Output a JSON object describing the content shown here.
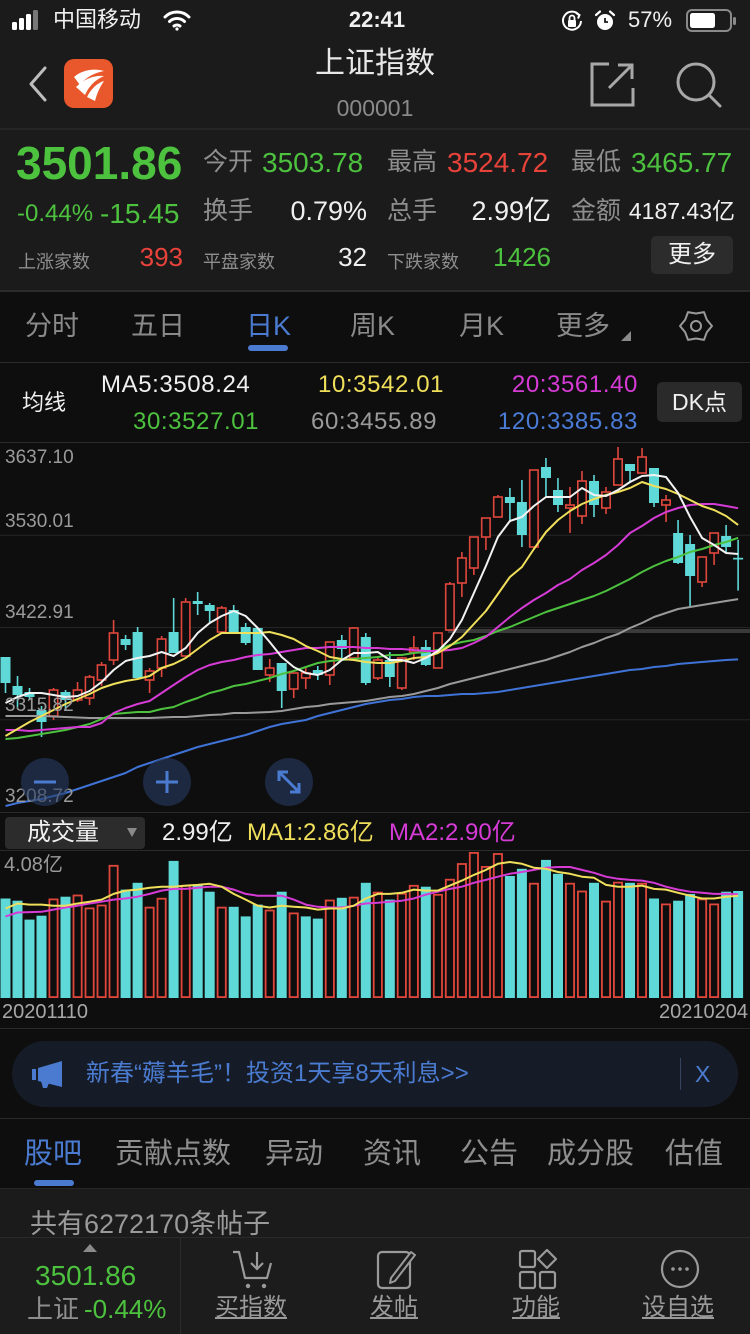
{
  "status_bar": {
    "carrier": "中国移动",
    "time": "22:41",
    "battery": "57%"
  },
  "header": {
    "title": "上证指数",
    "code": "000001"
  },
  "quote": {
    "price": "3501.86",
    "change_pct": "-0.44%",
    "change": "-15.45",
    "open_label": "今开",
    "open": "3503.78",
    "high_label": "最高",
    "high": "3524.72",
    "low_label": "最低",
    "low": "3465.77",
    "turnover_label": "换手",
    "turnover": "0.79%",
    "volume_label": "总手",
    "volume": "2.99亿",
    "amount_label": "金额",
    "amount": "4187.43亿",
    "up_label": "上涨家数",
    "up": "393",
    "flat_label": "平盘家数",
    "flat": "32",
    "down_label": "下跌家数",
    "down": "1426",
    "more_button": "更多"
  },
  "period_tabs": [
    {
      "label": "分时"
    },
    {
      "label": "五日"
    },
    {
      "label": "日K",
      "active": true
    },
    {
      "label": "周K"
    },
    {
      "label": "月K"
    },
    {
      "label": "更多"
    }
  ],
  "ma_legend": {
    "label": "均线",
    "ma5": "MA5:3508.24",
    "ma10": "10:3542.01",
    "ma20": "20:3561.40",
    "ma30": "30:3527.01",
    "ma60": "60:3455.89",
    "ma120": "120:3385.83",
    "dk_button": "DK点"
  },
  "kline": {
    "y_ticks": [
      "3637.10",
      "3530.01",
      "3422.91",
      "3315.82",
      "3208.72"
    ]
  },
  "volume_panel": {
    "selector": "成交量",
    "value": "2.99亿",
    "ma1": "MA1:2.86亿",
    "ma2": "MA2:2.90亿",
    "max_label": "4.08亿",
    "start_date": "20201110",
    "end_date": "20210204"
  },
  "banner": {
    "text": "新春“薅羊毛”！投资1天享8天利息>>",
    "close": "X"
  },
  "content_tabs": [
    {
      "label": "股吧",
      "active": true
    },
    {
      "label": "贡献点数"
    },
    {
      "label": "异动"
    },
    {
      "label": "资讯"
    },
    {
      "label": "公告"
    },
    {
      "label": "成分股"
    },
    {
      "label": "估值"
    }
  ],
  "post_count": "共有6272170条帖子",
  "bottom_bar": {
    "price": "3501.86",
    "name": "上证",
    "change_pct": "-0.44%",
    "actions": [
      {
        "label": "买指数",
        "icon": "cart-download-icon"
      },
      {
        "label": "发帖",
        "icon": "edit-icon"
      },
      {
        "label": "功能",
        "icon": "apps-grid-icon"
      },
      {
        "label": "设自选",
        "icon": "more-circle-icon"
      }
    ]
  },
  "colors": {
    "up": "#e0473c",
    "down": "#5fd8d8",
    "green_text": "#4dc23f",
    "red_text": "#e8433a",
    "accent": "#4a7bd0",
    "ma5": "#f2f2f2",
    "ma10": "#f0df5b",
    "ma20": "#d63bd6",
    "ma30": "#4dc23f",
    "ma60": "#9a9a9a",
    "ma120": "#3f73d6",
    "vol_ma1": "#f0df5b",
    "vol_ma2": "#d63bd6"
  },
  "chart_data": {
    "type": "candlestick",
    "title": "上证指数 日K",
    "x_start": "20201110",
    "x_end": "20210204",
    "ylim": [
      3208.72,
      3637.1
    ],
    "y_ticks": [
      3637.1,
      3530.01,
      3422.91,
      3315.82,
      3208.72
    ],
    "grid": true,
    "candle_format": [
      "open",
      "high",
      "low",
      "close"
    ],
    "candles": [
      [
        3388.67,
        3388.67,
        3346.88,
        3358.49
      ],
      [
        3355.0,
        3366.61,
        3330.62,
        3344.55
      ],
      [
        3348.04,
        3352.69,
        3338.75,
        3342.23
      ],
      [
        3327.14,
        3331.78,
        3295.8,
        3313.21
      ],
      [
        3320.18,
        3352.69,
        3315.53,
        3350.36
      ],
      [
        3348.04,
        3350.36,
        3327.14,
        3338.75
      ],
      [
        3338.75,
        3359.65,
        3336.43,
        3350.36
      ],
      [
        3341.07,
        3367.77,
        3332.95,
        3365.45
      ],
      [
        3361.97,
        3382.86,
        3355.0,
        3379.38
      ],
      [
        3385.19,
        3431.62,
        3379.38,
        3416.53
      ],
      [
        3409.56,
        3414.21,
        3396.79,
        3402.6
      ],
      [
        3417.69,
        3423.5,
        3364.29,
        3364.29
      ],
      [
        3361.97,
        3375.9,
        3346.88,
        3372.41
      ],
      [
        3375.9,
        3413.05,
        3365.45,
        3409.56
      ],
      [
        3417.69,
        3457.16,
        3393.3,
        3393.3
      ],
      [
        3389.83,
        3457.16,
        3389.83,
        3452.52
      ],
      [
        3453.68,
        3464.13,
        3437.43,
        3450.2
      ],
      [
        3449.04,
        3451.36,
        3429.3,
        3442.07
      ],
      [
        3417.69,
        3447.87,
        3417.69,
        3445.55
      ],
      [
        3443.23,
        3449.04,
        3415.37,
        3417.69
      ],
      [
        3423.5,
        3428.14,
        3402.6,
        3404.92
      ],
      [
        3422.34,
        3422.34,
        3373.58,
        3373.58
      ],
      [
        3367.77,
        3386.35,
        3359.65,
        3375.9
      ],
      [
        3381.7,
        3381.7,
        3329.46,
        3349.2
      ],
      [
        3351.52,
        3370.09,
        3341.07,
        3370.09
      ],
      [
        3364.29,
        3375.9,
        3351.52,
        3370.09
      ],
      [
        3373.58,
        3378.22,
        3361.97,
        3367.77
      ],
      [
        3367.77,
        3406.08,
        3356.16,
        3406.08
      ],
      [
        3408.4,
        3414.21,
        3387.51,
        3397.96
      ],
      [
        3387.51,
        3423.5,
        3387.51,
        3422.34
      ],
      [
        3411.89,
        3416.53,
        3356.16,
        3358.49
      ],
      [
        3364.29,
        3389.83,
        3361.97,
        3385.19
      ],
      [
        3385.19,
        3394.47,
        3353.84,
        3365.45
      ],
      [
        3352.68,
        3388.67,
        3350.36,
        3387.51
      ],
      [
        3394.47,
        3413.05,
        3385.19,
        3399.12
      ],
      [
        3400.28,
        3408.4,
        3378.22,
        3379.38
      ],
      [
        3375.9,
        3416.53,
        3375.9,
        3416.53
      ],
      [
        3420.01,
        3475.74,
        3420.01,
        3473.41
      ],
      [
        3474.58,
        3510.56,
        3458.32,
        3503.6
      ],
      [
        3491.99,
        3527.98,
        3483.86,
        3527.98
      ],
      [
        3527.98,
        3550.03,
        3512.88,
        3550.03
      ],
      [
        3551.19,
        3576.73,
        3551.19,
        3574.41
      ],
      [
        3574.41,
        3584.86,
        3545.39,
        3567.45
      ],
      [
        3568.61,
        3594.15,
        3516.37,
        3530.3
      ],
      [
        3516.37,
        3605.76,
        3516.37,
        3605.76
      ],
      [
        3609.24,
        3619.69,
        3574.41,
        3596.47
      ],
      [
        3582.54,
        3596.47,
        3557.0,
        3565.13
      ],
      [
        3561.64,
        3586.02,
        3532.62,
        3565.13
      ],
      [
        3552.36,
        3604.6,
        3543.07,
        3592.99
      ],
      [
        3592.99,
        3599.95,
        3551.19,
        3565.13
      ],
      [
        3561.64,
        3586.02,
        3554.68,
        3580.22
      ],
      [
        3588.34,
        3632.46,
        3588.34,
        3618.53
      ],
      [
        3612.72,
        3612.72,
        3590.67,
        3604.6
      ],
      [
        3602.27,
        3631.3,
        3602.27,
        3620.85
      ],
      [
        3608.08,
        3608.08,
        3562.8,
        3567.45
      ],
      [
        3565.13,
        3576.73,
        3545.39,
        3570.93
      ],
      [
        3532.62,
        3547.71,
        3496.63,
        3497.79
      ],
      [
        3519.85,
        3530.3,
        3446.71,
        3482.7
      ],
      [
        3475.74,
        3504.76,
        3469.93,
        3504.76
      ],
      [
        3509.4,
        3532.62,
        3495.47,
        3532.62
      ],
      [
        3529.14,
        3541.91,
        3509.4,
        3516.37
      ],
      [
        3503.78,
        3524.72,
        3465.77,
        3501.86
      ]
    ],
    "ma": {
      "MA5": [
        3335.27,
        3342.23,
        3346.88,
        3346.88,
        3344.55,
        3342.23,
        3343.39,
        3349.2,
        3359.65,
        3373.58,
        3384.03,
        3387.51,
        3389.83,
        3394.47,
        3389.83,
        3399.12,
        3416.53,
        3428.14,
        3436.27,
        3442.07,
        3436.27,
        3422.34,
        3406.08,
        3388.67,
        3377.06,
        3370.09,
        3367.77,
        3373.58,
        3385.19,
        3393.3,
        3393.3,
        3394.47,
        3385.19,
        3385.19,
        3381.7,
        3387.51,
        3395.63,
        3409.56,
        3431.62,
        3462.97,
        3494.31,
        3527.98,
        3546.55,
        3551.19,
        3563.96,
        3574.41,
        3574.41,
        3574.41,
        3584.86,
        3576.73,
        3575.57,
        3582.54,
        3591.83,
        3598.79,
        3599.95,
        3597.63,
        3579.06,
        3551.19,
        3526.82,
        3518.69,
        3509.4,
        3508.24
      ],
      "MA10": [
        3296.96,
        3305.08,
        3313.21,
        3320.18,
        3327.14,
        3334.11,
        3339.91,
        3345.72,
        3352.68,
        3357.32,
        3360.81,
        3363.13,
        3366.61,
        3375.9,
        3380.54,
        3387.51,
        3397.96,
        3408.4,
        3416.53,
        3416.53,
        3416.53,
        3416.53,
        3417.69,
        3414.21,
        3409.56,
        3401.44,
        3395.63,
        3388.67,
        3386.35,
        3385.19,
        3382.86,
        3381.7,
        3381.7,
        3384.03,
        3387.51,
        3388.67,
        3393.3,
        3401.44,
        3411.89,
        3426.98,
        3442.07,
        3461.81,
        3481.54,
        3493.15,
        3514.05,
        3533.78,
        3547.71,
        3558.16,
        3566.29,
        3572.09,
        3576.73,
        3580.22,
        3584.86,
        3591.83,
        3587.18,
        3583.7,
        3577.9,
        3570.93,
        3563.96,
        3559.32,
        3552.36,
        3542.01
      ],
      "MA20": [
        3303.92,
        3303.92,
        3302.76,
        3303.92,
        3305.08,
        3306.24,
        3307.4,
        3307.4,
        3312.05,
        3323.66,
        3329.46,
        3334.11,
        3337.59,
        3346.88,
        3356.16,
        3365.45,
        3373.58,
        3379.38,
        3382.86,
        3385.19,
        3388.67,
        3390.99,
        3392.15,
        3394.47,
        3396.79,
        3399.12,
        3399.12,
        3400.28,
        3400.28,
        3400.28,
        3399.12,
        3399.12,
        3397.96,
        3397.96,
        3396.79,
        3395.63,
        3395.63,
        3396.79,
        3399.12,
        3404.92,
        3411.89,
        3423.5,
        3435.11,
        3445.55,
        3454.84,
        3462.97,
        3472.25,
        3479.22,
        3489.67,
        3497.79,
        3507.08,
        3518.69,
        3532.62,
        3540.75,
        3550.03,
        3557.0,
        3561.64,
        3565.13,
        3566.29,
        3566.29,
        3563.96,
        3561.4
      ],
      "MA30": [
        3293.47,
        3294.64,
        3296.96,
        3299.28,
        3301.6,
        3303.92,
        3307.4,
        3310.89,
        3316.69,
        3322.5,
        3323.66,
        3324.82,
        3324.82,
        3328.3,
        3330.62,
        3336.43,
        3341.07,
        3346.88,
        3350.36,
        3355.0,
        3357.32,
        3360.81,
        3364.29,
        3368.93,
        3372.41,
        3377.06,
        3381.7,
        3384.03,
        3385.19,
        3386.35,
        3387.51,
        3388.67,
        3390.99,
        3390.99,
        3393.3,
        3394.47,
        3396.79,
        3402.6,
        3406.08,
        3408.4,
        3413.05,
        3418.85,
        3423.5,
        3429.3,
        3435.11,
        3440.91,
        3445.55,
        3450.2,
        3454.84,
        3459.48,
        3465.29,
        3472.25,
        3479.22,
        3487.35,
        3494.31,
        3500.12,
        3504.76,
        3510.56,
        3514.05,
        3518.69,
        3522.17,
        3527.01
      ],
      "MA60": [
        3320.18,
        3320.18,
        3320.18,
        3320.18,
        3319.59,
        3319.01,
        3318.43,
        3317.85,
        3317.85,
        3317.85,
        3317.85,
        3317.85,
        3317.85,
        3318.43,
        3319.01,
        3319.01,
        3320.18,
        3321.34,
        3321.92,
        3323.66,
        3323.66,
        3324.24,
        3324.82,
        3325.98,
        3328.3,
        3330.62,
        3331.78,
        3334.11,
        3335.27,
        3336.43,
        3337.59,
        3339.91,
        3342.23,
        3343.39,
        3345.72,
        3349.2,
        3352.68,
        3357.32,
        3360.81,
        3364.29,
        3367.77,
        3371.25,
        3374.74,
        3378.22,
        3381.7,
        3385.19,
        3389.83,
        3394.47,
        3400.28,
        3404.92,
        3410.73,
        3415.37,
        3422.34,
        3428.14,
        3435.11,
        3439.74,
        3444.39,
        3446.71,
        3449.04,
        3451.36,
        3453.68,
        3455.89
      ],
      "MA120": [
        3215.69,
        3219.18,
        3221.5,
        3223.82,
        3227.3,
        3230.79,
        3235.43,
        3240.07,
        3244.72,
        3249.36,
        3254.0,
        3260.97,
        3265.61,
        3270.26,
        3274.9,
        3279.54,
        3284.19,
        3287.67,
        3291.15,
        3294.64,
        3298.12,
        3302.76,
        3307.4,
        3310.89,
        3313.21,
        3315.53,
        3320.18,
        3323.66,
        3327.14,
        3330.62,
        3334.11,
        3336.43,
        3338.75,
        3339.91,
        3342.23,
        3343.39,
        3343.39,
        3344.55,
        3345.72,
        3345.72,
        3346.88,
        3348.04,
        3350.36,
        3352.68,
        3355.0,
        3357.32,
        3359.65,
        3361.97,
        3364.29,
        3366.61,
        3368.93,
        3371.25,
        3373.58,
        3374.74,
        3377.06,
        3378.22,
        3380.54,
        3381.7,
        3382.86,
        3384.03,
        3385.19,
        3385.83
      ]
    },
    "volume": {
      "unit": "亿",
      "ylim": [
        0,
        4.08
      ],
      "values": [
        2.78,
        2.72,
        2.19,
        2.3,
        2.78,
        2.83,
        2.89,
        2.53,
        2.61,
        3.72,
        3.03,
        3.22,
        2.55,
        2.8,
        3.83,
        3.16,
        3.16,
        2.97,
        2.55,
        2.55,
        2.28,
        2.61,
        2.47,
        2.97,
        2.39,
        2.28,
        2.22,
        2.75,
        2.8,
        2.83,
        3.22,
        2.97,
        2.75,
        2.94,
        3.16,
        3.11,
        2.91,
        3.33,
        3.77,
        4.08,
        3.69,
        4.05,
        3.41,
        3.61,
        3.22,
        3.86,
        3.47,
        3.22,
        3.0,
        3.22,
        2.72,
        3.25,
        3.22,
        3.22,
        2.78,
        2.64,
        2.72,
        2.91,
        2.78,
        2.64,
        2.97,
        2.99
      ],
      "up": [
        0,
        0,
        0,
        0,
        1,
        0,
        1,
        1,
        1,
        1,
        0,
        0,
        1,
        1,
        0,
        1,
        0,
        0,
        1,
        0,
        0,
        0,
        1,
        0,
        1,
        0,
        0,
        1,
        0,
        1,
        0,
        1,
        0,
        1,
        1,
        0,
        1,
        1,
        1,
        1,
        1,
        1,
        0,
        0,
        1,
        0,
        0,
        1,
        1,
        0,
        1,
        1,
        0,
        1,
        0,
        1,
        0,
        0,
        1,
        1,
        0,
        0
      ]
    },
    "volume_ma": {
      "MA1": [
        2.5,
        2.64,
        2.61,
        2.61,
        2.58,
        2.58,
        2.64,
        2.69,
        2.75,
        2.91,
        3.0,
        3.03,
        3.08,
        3.11,
        3.11,
        3.14,
        3.16,
        3.19,
        3.11,
        2.91,
        2.75,
        2.58,
        2.53,
        2.58,
        2.55,
        2.53,
        2.47,
        2.5,
        2.5,
        2.58,
        2.78,
        2.91,
        2.91,
        2.94,
        3.03,
        3.0,
        3.0,
        3.14,
        3.28,
        3.44,
        3.58,
        3.75,
        3.8,
        3.75,
        3.64,
        3.61,
        3.52,
        3.47,
        3.39,
        3.36,
        3.16,
        3.11,
        3.11,
        3.14,
        3.05,
        3.03,
        2.94,
        2.86,
        2.78,
        2.78,
        2.83,
        2.86
      ],
      "MA2": [
        2.28,
        2.39,
        2.4,
        2.41,
        2.47,
        2.53,
        2.58,
        2.64,
        2.69,
        2.75,
        2.78,
        2.83,
        2.91,
        3.0,
        3.05,
        3.05,
        3.08,
        3.11,
        3.11,
        3.03,
        2.91,
        2.86,
        2.86,
        2.86,
        2.75,
        2.61,
        2.55,
        2.53,
        2.53,
        2.58,
        2.64,
        2.66,
        2.69,
        2.72,
        2.78,
        2.89,
        2.97,
        3.05,
        3.11,
        3.22,
        3.3,
        3.39,
        3.47,
        3.52,
        3.58,
        3.64,
        3.66,
        3.66,
        3.58,
        3.5,
        3.39,
        3.33,
        3.3,
        3.28,
        3.22,
        3.11,
        3.03,
        2.97,
        2.94,
        2.91,
        2.91,
        2.9
      ]
    }
  }
}
